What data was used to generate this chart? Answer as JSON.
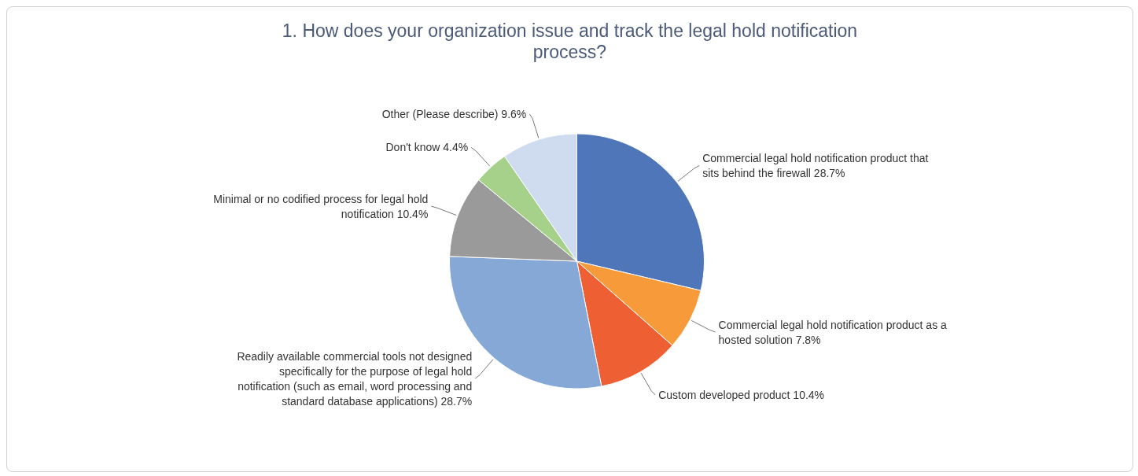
{
  "chart_data": {
    "type": "pie",
    "title": "1. How does your organization issue and track the legal hold notification process?",
    "categories": [
      "Commercial legal hold notification product that sits behind the firewall",
      "Commercial legal hold notification product as a hosted solution",
      "Custom developed product",
      "Readily available commercial tools not designed specifically for the purpose of legal hold notification (such as email, word processing and standard database applications)",
      "Minimal or no codified process for legal hold notification",
      "Don't know",
      "Other (Please describe)"
    ],
    "values": [
      28.7,
      7.8,
      10.4,
      28.7,
      10.4,
      4.4,
      9.6
    ],
    "value_labels": [
      "28.7%",
      "7.8%",
      "10.4%",
      "28.7%",
      "10.4%",
      "4.4%",
      "9.6%"
    ],
    "colors": [
      "#4f76b8",
      "#f79a3a",
      "#ee5f33",
      "#86a8d6",
      "#9a9a9a",
      "#a6d18a",
      "#cfdcef"
    ],
    "legend": false
  }
}
